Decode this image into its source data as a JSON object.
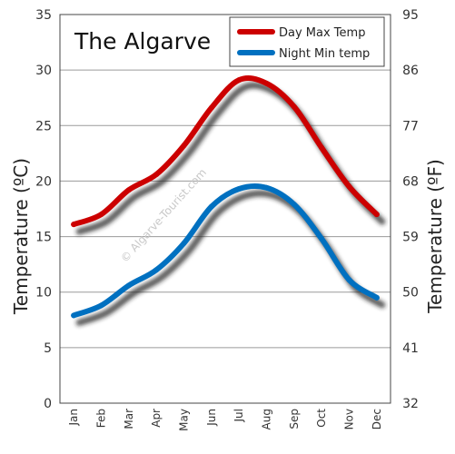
{
  "chart_data": {
    "type": "line",
    "title": "The Algarve",
    "watermark": "© Algarve-Tourist.com",
    "categories": [
      "Jan",
      "Feb",
      "Mar",
      "Apr",
      "May",
      "Jun",
      "Jul",
      "Aug",
      "Sep",
      "Oct",
      "Nov",
      "Dec"
    ],
    "ylabel_left": "Temperature  (ºC)",
    "ylabel_right": "Temperature  (ºF)",
    "ylim": [
      0,
      35
    ],
    "yticks_left": [
      "0",
      "5",
      "10",
      "15",
      "20",
      "25",
      "30",
      "35"
    ],
    "yticks_right": [
      "32",
      "41",
      "50",
      "59",
      "68",
      "77",
      "86",
      "95"
    ],
    "grid": true,
    "legend_position": "top-right",
    "series": [
      {
        "name": "Day Max Temp",
        "color": "#cc0000",
        "values": [
          16.1,
          17.0,
          19.2,
          20.6,
          23.2,
          26.6,
          29.1,
          28.8,
          26.7,
          23.0,
          19.5,
          17.0
        ]
      },
      {
        "name": "Night Min temp",
        "color": "#0070c0",
        "values": [
          7.9,
          8.8,
          10.6,
          12.0,
          14.4,
          17.7,
          19.3,
          19.4,
          17.9,
          14.8,
          11.1,
          9.5
        ]
      }
    ]
  }
}
